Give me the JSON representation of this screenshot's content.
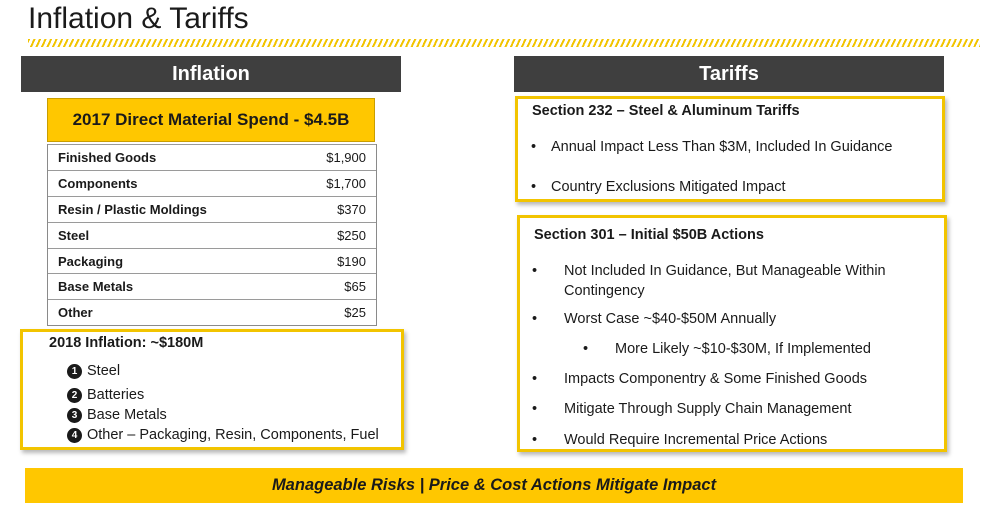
{
  "page": {
    "title": "Inflation & Tariffs"
  },
  "inflation": {
    "header": "Inflation",
    "spend_title": "2017 Direct Material Spend - $4.5B",
    "rows": [
      {
        "label": "Finished Goods",
        "value": "$1,900"
      },
      {
        "label": "Components",
        "value": "$1,700"
      },
      {
        "label": "Resin / Plastic Moldings",
        "value": "$370"
      },
      {
        "label": "Steel",
        "value": "$250"
      },
      {
        "label": "Packaging",
        "value": "$190"
      },
      {
        "label": "Base Metals",
        "value": "$65"
      },
      {
        "label": "Other",
        "value": "$25"
      }
    ],
    "outlook": {
      "title": "2018 Inflation: ~$180M",
      "items": [
        {
          "num": "1",
          "text": "Steel"
        },
        {
          "num": "2",
          "text": "Batteries"
        },
        {
          "num": "3",
          "text": "Base Metals"
        },
        {
          "num": "4",
          "text": "Other – Packaging, Resin, Components, Fuel"
        }
      ]
    }
  },
  "tariffs": {
    "header": "Tariffs",
    "section232": {
      "title": "Section 232 – Steel & Aluminum Tariffs",
      "bullets": [
        "Annual Impact Less Than $3M, Included In Guidance",
        "Country Exclusions Mitigated Impact"
      ]
    },
    "section301": {
      "title": "Section 301 – Initial $50B Actions",
      "bullets": [
        "Not Included In Guidance, But Manageable Within Contingency",
        "Worst Case ~$40-$50M Annually",
        "More Likely ~$10-$30M,  If Implemented",
        "Impacts Componentry & Some Finished Goods",
        "Mitigate Through Supply Chain Management",
        "Would Require Incremental Price Actions"
      ]
    }
  },
  "footer": {
    "banner": "Manageable Risks | Price & Cost Actions Mitigate Impact"
  },
  "colors": {
    "accent_yellow": "#ffc700",
    "header_gray": "#3f3f3f"
  }
}
